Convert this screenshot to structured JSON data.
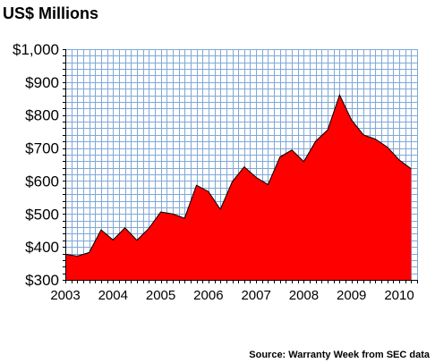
{
  "chart_data": {
    "type": "area",
    "title": "US$ Millions",
    "source": "Source: Warranty Week from SEC data",
    "xlabel": "",
    "ylabel": "",
    "ylim": [
      300,
      1000
    ],
    "xlim": [
      2003.0,
      2010.375
    ],
    "y_ticks": [
      300,
      400,
      500,
      600,
      700,
      800,
      900,
      1000
    ],
    "y_tick_labels": [
      "$300",
      "$400",
      "$500",
      "$600",
      "$700",
      "$800",
      "$900",
      "$1,000"
    ],
    "x_ticks": [
      2003,
      2004,
      2005,
      2006,
      2007,
      2008,
      2009,
      2010
    ],
    "x_tick_labels": [
      "2003",
      "2004",
      "2005",
      "2006",
      "2007",
      "2008",
      "2009",
      "2010"
    ],
    "grid": true,
    "fill_color": "#ff0000",
    "grid_color": "#80a8d8",
    "series": [
      {
        "x": [
          2003.0,
          2003.25,
          2003.5,
          2003.75,
          2004.0,
          2004.25,
          2004.5,
          2004.75,
          2005.0,
          2005.25,
          2005.5,
          2005.75,
          2006.0,
          2006.25,
          2006.5,
          2006.75,
          2007.0,
          2007.25,
          2007.5,
          2007.75,
          2008.0,
          2008.25,
          2008.5,
          2008.75,
          2009.0,
          2009.25,
          2009.5,
          2009.75,
          2010.0,
          2010.25
        ],
        "values": [
          378,
          372,
          383,
          452,
          421,
          458,
          420,
          456,
          506,
          500,
          487,
          587,
          568,
          514,
          598,
          643,
          611,
          589,
          673,
          694,
          659,
          721,
          755,
          861,
          785,
          740,
          727,
          703,
          664,
          637
        ]
      }
    ]
  }
}
